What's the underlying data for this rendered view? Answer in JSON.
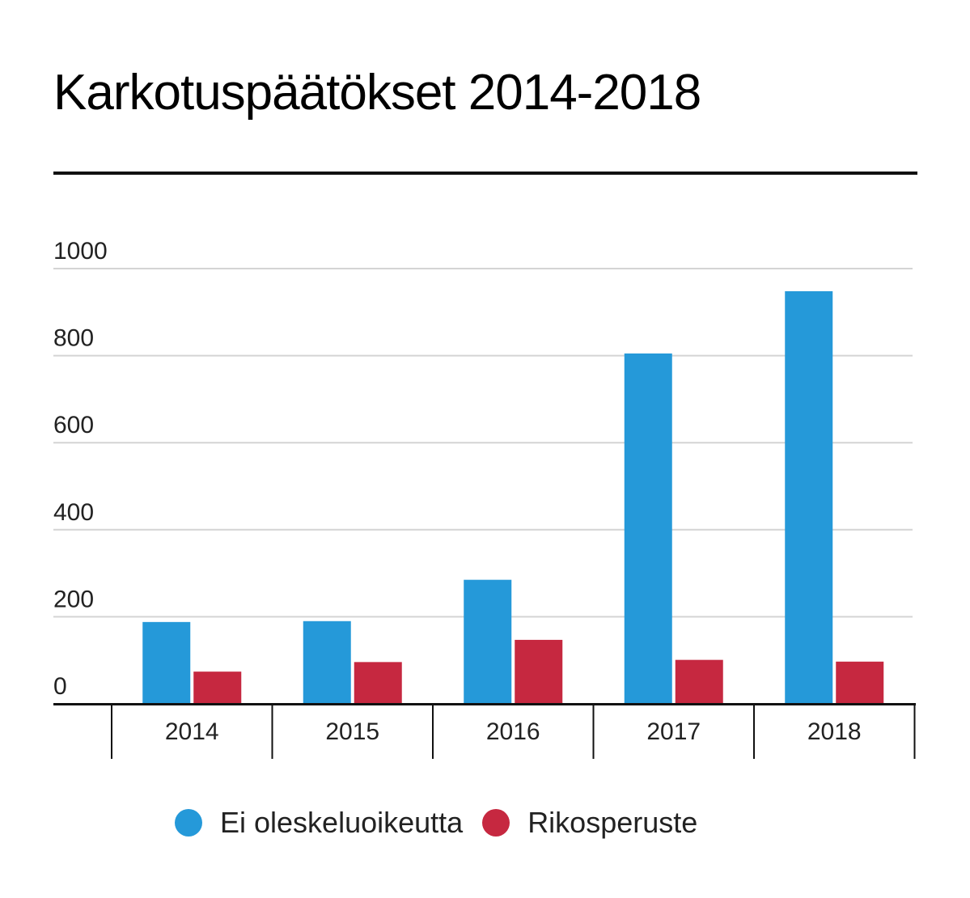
{
  "chart_data": {
    "type": "bar",
    "title": "Karkotuspäätökset 2014-2018",
    "categories": [
      "2014",
      "2015",
      "2016",
      "2017",
      "2018"
    ],
    "series": [
      {
        "name": "Ei oleskeluoikeutta",
        "color": "#2599d9",
        "values": [
          188,
          190,
          285,
          805,
          948
        ]
      },
      {
        "name": "Rikosperuste",
        "color": "#c62840",
        "values": [
          74,
          96,
          147,
          101,
          97
        ]
      }
    ],
    "yticks": [
      "0",
      "200",
      "400",
      "600",
      "800",
      "1000"
    ],
    "ylim": [
      0,
      1000
    ],
    "grid": true,
    "legend_position": "bottom"
  }
}
